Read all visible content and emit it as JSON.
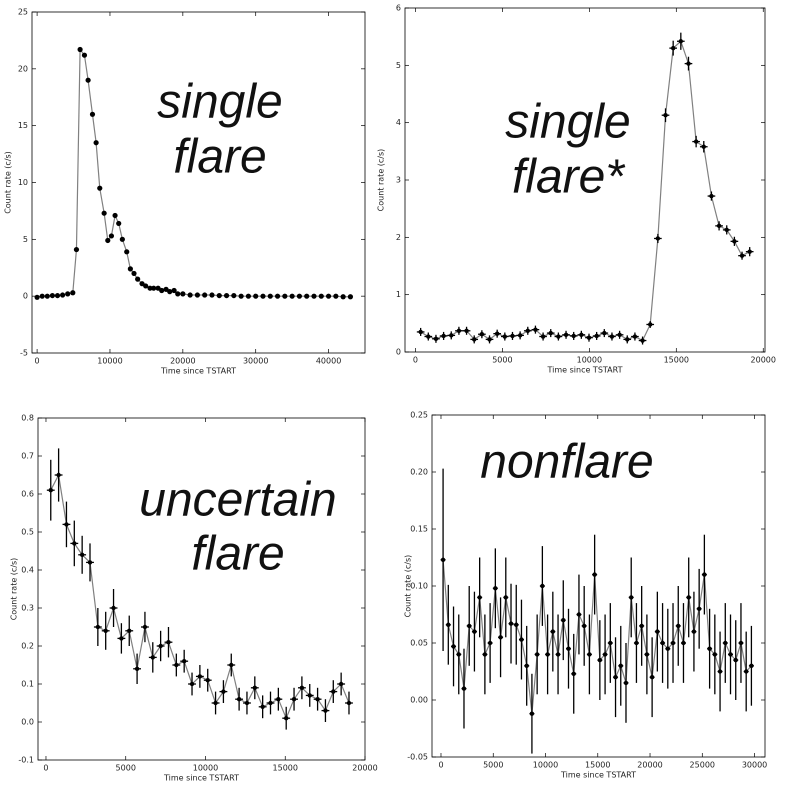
{
  "chart_data": [
    {
      "type": "line",
      "annotation": [
        "single",
        "flare"
      ],
      "xlabel": "Time since TSTART",
      "ylabel": "Count rate (c/s)",
      "xlim": [
        -700,
        45000
      ],
      "ylim": [
        -5,
        25
      ],
      "xticks": [
        0,
        10000,
        20000,
        30000,
        40000
      ],
      "yticks": [
        -5,
        0,
        5,
        10,
        15,
        20,
        25
      ],
      "line_color": "#808080",
      "x": [
        0,
        700,
        1400,
        2100,
        2800,
        3500,
        4200,
        4900,
        5400,
        5900,
        6500,
        7000,
        7600,
        8100,
        8600,
        9200,
        9700,
        10200,
        10700,
        11200,
        11700,
        12300,
        12800,
        13300,
        13800,
        14400,
        14900,
        15500,
        16000,
        16600,
        17100,
        17700,
        18200,
        18800,
        19300,
        20000,
        21000,
        22000,
        23000,
        24000,
        25000,
        26000,
        27000,
        28000,
        29000,
        30000,
        31000,
        32000,
        33000,
        34000,
        35000,
        36000,
        37000,
        38000,
        39000,
        40000,
        41000,
        42000,
        43000
      ],
      "series": [
        {
          "color": "#000000",
          "values": [
            -0.1,
            0,
            0,
            0.05,
            0.05,
            0.1,
            0.2,
            0.3,
            4.1,
            21.7,
            21.2,
            19,
            16,
            13.5,
            9.5,
            7.3,
            4.9,
            5.3,
            7.1,
            6.4,
            5,
            3.9,
            2.4,
            2,
            1.5,
            1.1,
            0.9,
            0.7,
            0.7,
            0.7,
            0.5,
            0.6,
            0.4,
            0.5,
            0.2,
            0.2,
            0.1,
            0.1,
            0.1,
            0.1,
            0.05,
            0.05,
            0.05,
            0,
            0,
            0,
            0,
            0,
            0,
            0,
            0,
            0,
            0,
            0,
            0,
            0,
            0,
            -0.05,
            -0.05
          ]
        }
      ]
    },
    {
      "type": "errorbar",
      "annotation": [
        "single",
        "flare*"
      ],
      "xlabel": "Time since TSTART",
      "ylabel": "Count rate (c/s)",
      "xlim": [
        -600,
        20100
      ],
      "ylim": [
        0,
        6
      ],
      "xticks": [
        0,
        5000,
        10000,
        15000,
        20000
      ],
      "yticks": [
        0,
        1,
        2,
        3,
        4,
        5,
        6
      ],
      "line_color": "#808080",
      "xerr": 220,
      "x": [
        300,
        740,
        1180,
        1620,
        2060,
        2500,
        2940,
        3380,
        3820,
        4260,
        4700,
        5140,
        5580,
        6020,
        6460,
        6900,
        7340,
        7780,
        8220,
        8660,
        9100,
        9540,
        9980,
        10420,
        10860,
        11300,
        11740,
        12180,
        12620,
        13060,
        13500,
        13940,
        14380,
        14820,
        15260,
        15700,
        16140,
        16580,
        17020,
        17460,
        17900,
        18340,
        18780,
        19220
      ],
      "series": [
        {
          "color": "#000000",
          "values": [
            0.35,
            0.27,
            0.23,
            0.28,
            0.29,
            0.37,
            0.37,
            0.22,
            0.31,
            0.22,
            0.32,
            0.27,
            0.28,
            0.29,
            0.37,
            0.39,
            0.27,
            0.33,
            0.27,
            0.3,
            0.28,
            0.3,
            0.25,
            0.28,
            0.33,
            0.27,
            0.3,
            0.22,
            0.27,
            0.2,
            0.48,
            1.98,
            4.13,
            5.3,
            5.42,
            5.03,
            3.67,
            3.58,
            2.72,
            2.2,
            2.13,
            1.93,
            1.68,
            1.75
          ],
          "yerr": [
            0.07,
            0.07,
            0.07,
            0.07,
            0.07,
            0.07,
            0.07,
            0.07,
            0.07,
            0.07,
            0.07,
            0.07,
            0.07,
            0.07,
            0.07,
            0.07,
            0.07,
            0.07,
            0.07,
            0.07,
            0.07,
            0.07,
            0.07,
            0.07,
            0.07,
            0.07,
            0.07,
            0.07,
            0.07,
            0.07,
            0.06,
            0.08,
            0.12,
            0.13,
            0.15,
            0.12,
            0.1,
            0.1,
            0.08,
            0.08,
            0.08,
            0.08,
            0.07,
            0.08
          ]
        }
      ]
    },
    {
      "type": "errorbar",
      "annotation": [
        "uncertain",
        "flare"
      ],
      "xlabel": "Time since TSTART",
      "ylabel": "Count rate (c/s)",
      "xlim": [
        -500,
        20000
      ],
      "ylim": [
        -0.1,
        0.8
      ],
      "xticks": [
        0,
        5000,
        10000,
        15000,
        20000
      ],
      "yticks": [
        -0.1,
        {
          "value": 0,
          "label": "0.0"
        },
        0.1,
        0.2,
        0.3,
        0.4,
        0.5,
        0.6,
        0.7,
        0.8
      ],
      "line_color": "#808080",
      "xerr": 246,
      "x": [
        300,
        792,
        1284,
        1776,
        2268,
        2760,
        3252,
        3744,
        4236,
        4728,
        5220,
        5712,
        6204,
        6696,
        7188,
        7680,
        8172,
        8664,
        9156,
        9648,
        10140,
        10632,
        11124,
        11616,
        12108,
        12600,
        13092,
        13584,
        14076,
        14568,
        15060,
        15552,
        16044,
        16536,
        17028,
        17520,
        18012,
        18504,
        18996
      ],
      "series": [
        {
          "color": "#000000",
          "values": [
            0.61,
            0.65,
            0.52,
            0.47,
            0.44,
            0.42,
            0.25,
            0.24,
            0.3,
            0.22,
            0.24,
            0.14,
            0.25,
            0.17,
            0.2,
            0.21,
            0.15,
            0.16,
            0.1,
            0.12,
            0.11,
            0.05,
            0.08,
            0.15,
            0.06,
            0.05,
            0.09,
            0.04,
            0.05,
            0.06,
            0.01,
            0.06,
            0.09,
            0.07,
            0.06,
            0.03,
            0.08,
            0.1,
            0.05
          ],
          "yerr": [
            0.08,
            0.07,
            0.06,
            0.06,
            0.05,
            0.05,
            0.05,
            0.05,
            0.05,
            0.04,
            0.04,
            0.04,
            0.04,
            0.04,
            0.04,
            0.04,
            0.03,
            0.03,
            0.03,
            0.03,
            0.03,
            0.03,
            0.03,
            0.03,
            0.03,
            0.03,
            0.03,
            0.03,
            0.03,
            0.03,
            0.03,
            0.03,
            0.03,
            0.03,
            0.03,
            0.03,
            0.03,
            0.03,
            0.03
          ]
        }
      ]
    },
    {
      "type": "errorbar",
      "annotation": [
        "nonflare"
      ],
      "xlabel": "Time since TSTART",
      "ylabel": "Count rate (c/s)",
      "xlim": [
        -860,
        31000
      ],
      "ylim": [
        -0.05,
        0.25
      ],
      "xticks": [
        0,
        5000,
        10000,
        15000,
        20000,
        25000,
        30000
      ],
      "yticks": [
        -0.05,
        {
          "value": 0,
          "label": "0.00"
        },
        0.05,
        {
          "value": 0.1,
          "label": "0.10"
        },
        0.15,
        {
          "value": 0.2,
          "label": "0.20"
        },
        0.25
      ],
      "line_color": "#808080",
      "xerr": 240,
      "x": [
        200,
        700,
        1200,
        1700,
        2200,
        2700,
        3200,
        3700,
        4200,
        4700,
        5200,
        5700,
        6200,
        6700,
        7200,
        7700,
        8200,
        8700,
        9200,
        9700,
        10200,
        10700,
        11200,
        11700,
        12200,
        12700,
        13200,
        13700,
        14200,
        14700,
        15200,
        15700,
        16200,
        16700,
        17200,
        17700,
        18200,
        18700,
        19200,
        19700,
        20200,
        20700,
        21200,
        21700,
        22200,
        22700,
        23200,
        23700,
        24200,
        24700,
        25200,
        25700,
        26200,
        26700,
        27200,
        27700,
        28200,
        28700,
        29200,
        29700
      ],
      "series": [
        {
          "color": "#000000",
          "values": [
            0.123,
            0.066,
            0.047,
            0.04,
            0.01,
            0.065,
            0.06,
            0.09,
            0.04,
            0.05,
            0.098,
            0.055,
            0.09,
            0.067,
            0.066,
            0.053,
            0.03,
            -0.012,
            0.04,
            0.1,
            0.04,
            0.06,
            0.04,
            0.07,
            0.045,
            0.023,
            0.075,
            0.065,
            0.04,
            0.11,
            0.035,
            0.04,
            0.05,
            0.02,
            0.03,
            0.015,
            0.09,
            0.05,
            0.065,
            0.04,
            0.02,
            0.06,
            0.05,
            0.045,
            0.05,
            0.065,
            0.05,
            0.09,
            0.06,
            0.08,
            0.11,
            0.045,
            0.04,
            0.025,
            0.05,
            0.04,
            0.035,
            0.05,
            0.025,
            0.03
          ],
          "yerr": [
            0.08,
            0.035,
            0.035,
            0.035,
            0.035,
            0.035,
            0.035,
            0.035,
            0.035,
            0.035,
            0.035,
            0.035,
            0.035,
            0.035,
            0.035,
            0.035,
            0.035,
            0.035,
            0.035,
            0.035,
            0.035,
            0.035,
            0.035,
            0.035,
            0.035,
            0.035,
            0.035,
            0.035,
            0.035,
            0.035,
            0.035,
            0.035,
            0.035,
            0.035,
            0.035,
            0.035,
            0.035,
            0.035,
            0.035,
            0.035,
            0.035,
            0.035,
            0.035,
            0.035,
            0.035,
            0.035,
            0.035,
            0.035,
            0.035,
            0.035,
            0.035,
            0.035,
            0.035,
            0.035,
            0.035,
            0.035,
            0.035,
            0.035,
            0.035,
            0.035
          ]
        }
      ]
    }
  ]
}
